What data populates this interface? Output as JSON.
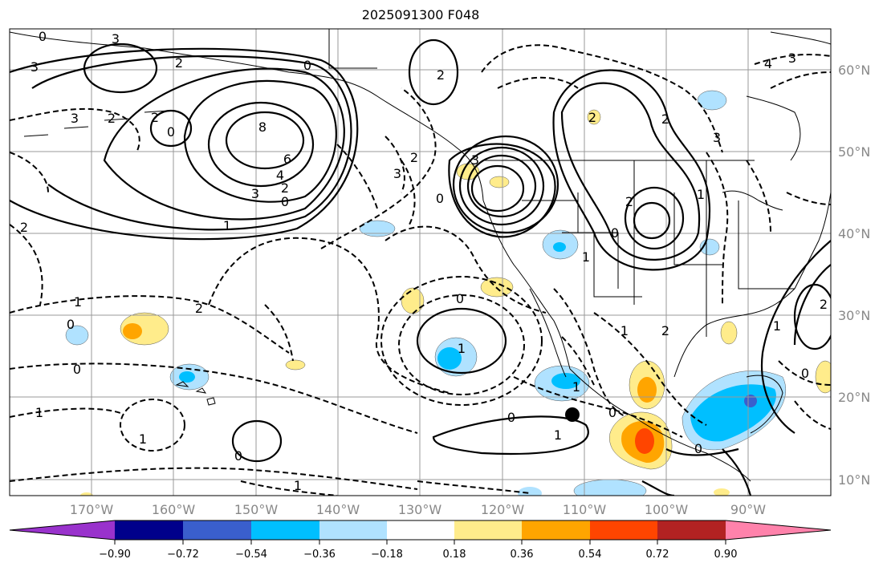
{
  "title": "2025091300 F048",
  "map": {
    "lat_labels": [
      "60°N",
      "50°N",
      "40°N",
      "30°N",
      "20°N",
      "10°N"
    ],
    "lon_labels": [
      "170°W",
      "160°W",
      "150°W",
      "140°W",
      "130°W",
      "120°W",
      "110°W",
      "100°W",
      "90°W"
    ],
    "contour_labels": [
      "0",
      "3",
      "0",
      "2",
      "0",
      "3",
      "2",
      "3",
      "2",
      "8",
      "6",
      "4",
      "3",
      "2",
      "0",
      "1",
      "2",
      "3",
      "0",
      "2",
      "2",
      "3",
      "4",
      "3",
      "2",
      "2",
      "3",
      "1",
      "2",
      "1",
      "0",
      "0",
      "1",
      "0",
      "1",
      "2",
      "1",
      "1",
      "0",
      "1",
      "1",
      "0",
      "2",
      "1",
      "0",
      "0",
      "2",
      "1",
      "0",
      "0",
      "1"
    ]
  },
  "colorbar": {
    "ticks": [
      "−0.90",
      "−0.72",
      "−0.54",
      "−0.36",
      "−0.18",
      "0.18",
      "0.36",
      "0.54",
      "0.72",
      "0.90"
    ],
    "colors": [
      "#9932cc",
      "#00008b",
      "#3a5fcd",
      "#00bfff",
      "#b0e2ff",
      "#ffffff",
      "#ffec8b",
      "#ffa500",
      "#ff4500",
      "#b22222",
      "#ff82ab"
    ]
  }
}
